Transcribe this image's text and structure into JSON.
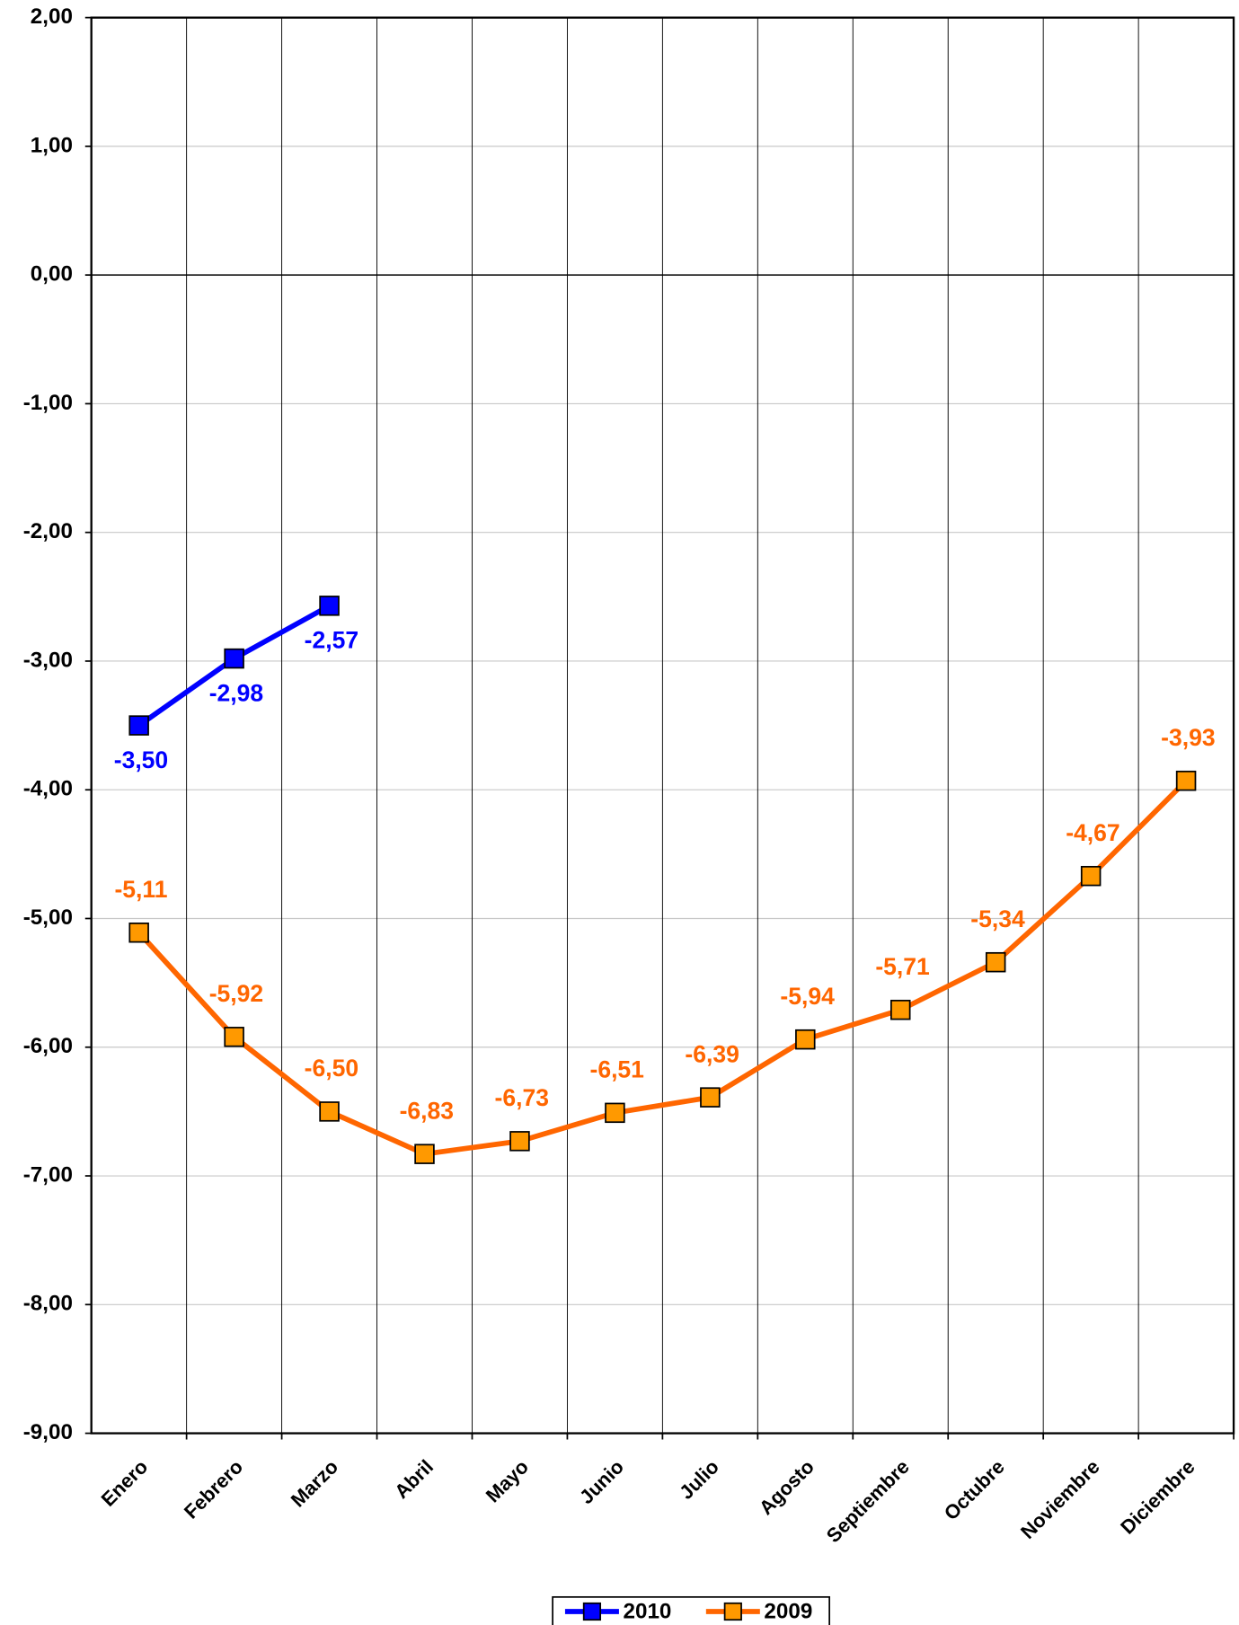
{
  "chart_data": {
    "type": "line",
    "categories": [
      "Enero",
      "Febrero",
      "Marzo",
      "Abril",
      "Mayo",
      "Junio",
      "Julio",
      "Agosto",
      "Septiembre",
      "Octubre",
      "Noviembre",
      "Diciembre"
    ],
    "series": [
      {
        "name": "2010",
        "color": "#0000ff",
        "marker_color": "#0000ff",
        "label_color": "#0000ff",
        "label_position": "below",
        "values": [
          -3.5,
          -2.98,
          -2.57,
          null,
          null,
          null,
          null,
          null,
          null,
          null,
          null,
          null
        ],
        "value_labels": [
          "-3,50",
          "-2,98",
          "-2,57",
          null,
          null,
          null,
          null,
          null,
          null,
          null,
          null,
          null
        ]
      },
      {
        "name": "2009",
        "color": "#ff6600",
        "marker_color": "#ff9900",
        "label_color": "#ff6600",
        "label_position": "above",
        "values": [
          -5.11,
          -5.92,
          -6.5,
          -6.83,
          -6.73,
          -6.51,
          -6.39,
          -5.94,
          -5.71,
          -5.34,
          -4.67,
          -3.93
        ],
        "value_labels": [
          "-5,11",
          "-5,92",
          "-6,50",
          "-6,83",
          "-6,73",
          "-6,51",
          "-6,39",
          "-5,94",
          "-5,71",
          "-5,34",
          "-4,67",
          "-3,93"
        ]
      }
    ],
    "ylim": [
      -9,
      2
    ],
    "yticks": [
      {
        "value": -9,
        "label": "-9,00"
      },
      {
        "value": -8,
        "label": "-8,00"
      },
      {
        "value": -7,
        "label": "-7,00"
      },
      {
        "value": -6,
        "label": "-6,00"
      },
      {
        "value": -5,
        "label": "-5,00"
      },
      {
        "value": -4,
        "label": "-4,00"
      },
      {
        "value": -3,
        "label": "-3,00"
      },
      {
        "value": -2,
        "label": "-2,00"
      },
      {
        "value": -1,
        "label": "-1,00"
      },
      {
        "value": 0,
        "label": "0,00"
      },
      {
        "value": 1,
        "label": "1,00"
      },
      {
        "value": 2,
        "label": "2,00"
      }
    ],
    "grid": true,
    "legend": "bottom"
  }
}
